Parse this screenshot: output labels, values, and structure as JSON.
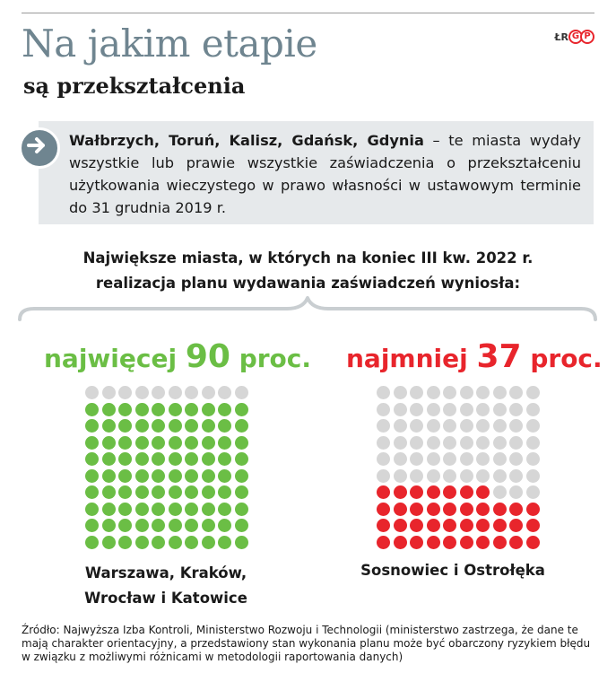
{
  "header": {
    "title": "Na jakim etapie",
    "subtitle": "są przekształcenia",
    "logo_text": "ŁR",
    "logo_letters": [
      "G",
      "P"
    ]
  },
  "info": {
    "cities": "Wałbrzych, Toruń, Kalisz, Gdańsk, Gdynia",
    "text": " – te miasta wydały wszystkie lub prawie wszystkie zaświadczenia o przekształceniu użytkowania wieczystego w prawo własności w ustawowym terminie do 31 grudnia 2019 r."
  },
  "question": {
    "line1": "Największe miasta, w których na koniec III kw. 2022 r.",
    "line2": "realizacja planu wydawania zaświadczeń wyniosła:"
  },
  "chart_data": [
    {
      "type": "waffle",
      "label_prefix": "najwięcej",
      "value": 90,
      "value_text": "90",
      "unit": "proc.",
      "total": 100,
      "rows": 10,
      "cols": 10,
      "fill_color": "#6bbe45",
      "empty_color": "#d6d6d6",
      "cities_line1": "Warszawa, Kraków,",
      "cities_line2": "Wrocław i Katowice"
    },
    {
      "type": "waffle",
      "label_prefix": "najmniej",
      "value": 37,
      "value_text": "37",
      "unit": "proc.",
      "total": 100,
      "rows": 10,
      "cols": 10,
      "fill_color": "#e8252c",
      "empty_color": "#d6d6d6",
      "cities_line1": "Sosnowiec i Ostrołęka"
    }
  ],
  "source": "Źródło: Najwyższa Izba Kontroli, Ministerstwo Rozwoju i Technologii (ministerstwo zastrzega, że dane te mają charakter orientacyjny, a przedstawiony stan wykonania planu może być obarczony ryzykiem błędu w związku z możliwymi różnicami w metodologii raportowania danych)",
  "colors": {
    "title": "#6f8590",
    "box_bg": "#e6e9eb",
    "green": "#6bbe45",
    "red": "#e8252c",
    "empty": "#d6d6d6"
  }
}
